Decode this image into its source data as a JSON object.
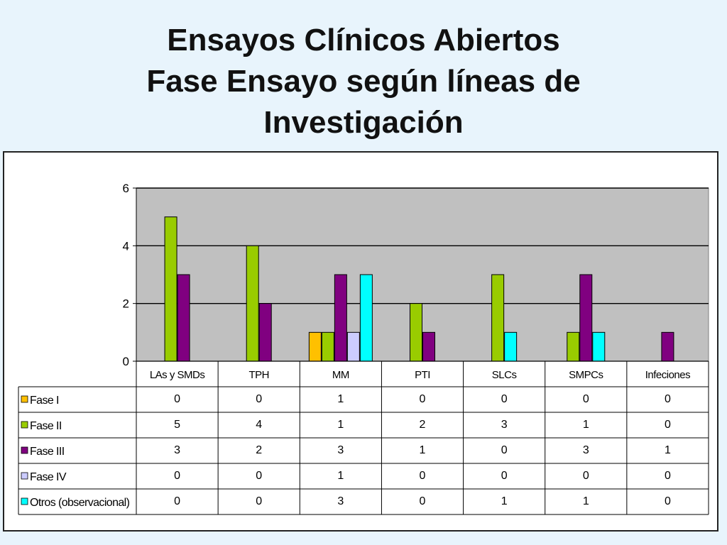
{
  "page": {
    "title_lines": [
      "Ensayos Clínicos Abiertos",
      "Fase Ensayo según líneas de",
      "Investigación"
    ]
  },
  "colors": {
    "plot_background": "#c0c0c0",
    "Fase I": "#ffc000",
    "Fase II": "#99cc00",
    "Fase III": "#800080",
    "Fase IV": "#ccccff",
    "Otros (observacional)": "#00ffff"
  },
  "chart_data": {
    "type": "bar",
    "categories": [
      "LAs y SMDs",
      "TPH",
      "MM",
      "PTI",
      "SLCs",
      "SMPCs",
      "Infeciones"
    ],
    "series": [
      {
        "name": "Fase I",
        "values": [
          0,
          0,
          1,
          0,
          0,
          0,
          0
        ]
      },
      {
        "name": "Fase II",
        "values": [
          5,
          4,
          1,
          2,
          3,
          1,
          0
        ]
      },
      {
        "name": "Fase III",
        "values": [
          3,
          2,
          3,
          1,
          0,
          3,
          1
        ]
      },
      {
        "name": "Fase IV",
        "values": [
          0,
          0,
          1,
          0,
          0,
          0,
          0
        ]
      },
      {
        "name": "Otros (observacional)",
        "values": [
          0,
          0,
          3,
          0,
          1,
          1,
          0
        ]
      }
    ],
    "ylim": [
      0,
      6
    ],
    "yticks": [
      0,
      2,
      4,
      6
    ],
    "grid": true,
    "legend": "data-table"
  }
}
